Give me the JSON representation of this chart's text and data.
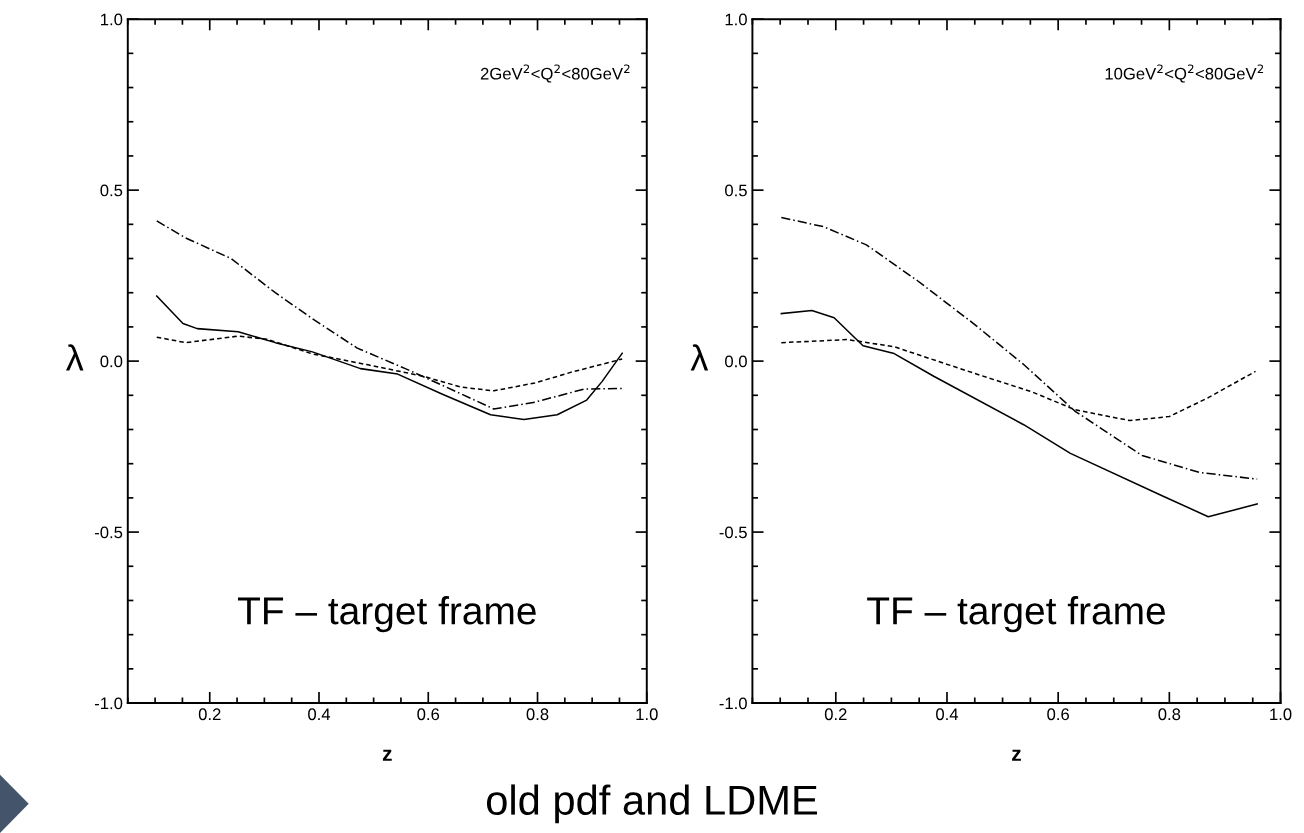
{
  "chart_data": [
    {
      "type": "line",
      "xlabel": "z",
      "ylabel": "λ",
      "xlim": [
        0.05,
        1.0
      ],
      "ylim": [
        -1.0,
        1.0
      ],
      "xticks": [
        0.2,
        0.4,
        0.6,
        0.8,
        {
          "value": 1.0,
          "label": "1.0"
        }
      ],
      "yticks": [
        {
          "value": -1.0,
          "label": "-1.0"
        },
        {
          "value": -0.5,
          "label": "-0.5"
        },
        {
          "value": 0.0,
          "label": "0.0"
        },
        0.5,
        {
          "value": 1.0,
          "label": "1.0"
        }
      ],
      "grid": false,
      "legend": false,
      "marker": "none",
      "annotations": [
        "2GeV$^{2}$<Q$^{2}$<80GeV$^{2}$",
        "TF – target frame",
        "old pdf and LDME"
      ],
      "series": [
        {
          "color": "#000000",
          "line_style": "solid",
          "x": [
            0.103,
            0.151,
            0.177,
            0.252,
            0.32,
            0.388,
            0.476,
            0.544,
            0.626,
            0.714,
            0.775,
            0.836,
            0.89,
            0.918,
            0.955
          ],
          "values": [
            0.19,
            0.11,
            0.095,
            0.086,
            0.054,
            0.027,
            -0.022,
            -0.038,
            -0.097,
            -0.157,
            -0.171,
            -0.157,
            -0.114,
            -0.06,
            0.023
          ]
        },
        {
          "color": "#000000",
          "line_style": "dashed",
          "x": [
            0.103,
            0.156,
            0.252,
            0.305,
            0.388,
            0.49,
            0.59,
            0.66,
            0.72,
            0.795,
            0.863,
            0.955
          ],
          "values": [
            0.07,
            0.054,
            0.073,
            0.064,
            0.021,
            -0.011,
            -0.044,
            -0.076,
            -0.087,
            -0.064,
            -0.032,
            0.006
          ]
        },
        {
          "color": "#000000",
          "line_style": "dashdot",
          "x": [
            0.103,
            0.156,
            0.239,
            0.32,
            0.388,
            0.47,
            0.558,
            0.633,
            0.72,
            0.795,
            0.885,
            0.955
          ],
          "values": [
            0.41,
            0.36,
            0.3,
            0.2,
            0.124,
            0.038,
            -0.022,
            -0.076,
            -0.14,
            -0.12,
            -0.082,
            -0.08
          ]
        }
      ]
    },
    {
      "type": "line",
      "xlabel": "z",
      "ylabel": "λ",
      "xlim": [
        0.05,
        1.0
      ],
      "ylim": [
        -1.0,
        1.0
      ],
      "xticks": [
        0.2,
        0.4,
        0.6,
        0.8,
        {
          "value": 1.0,
          "label": "1.0"
        }
      ],
      "yticks": [
        {
          "value": -1.0,
          "label": "-1.0"
        },
        {
          "value": -0.5,
          "label": "-0.5"
        },
        {
          "value": 0.0,
          "label": "0.0"
        },
        0.5,
        {
          "value": 1.0,
          "label": "1.0"
        }
      ],
      "grid": false,
      "legend": false,
      "marker": "none",
      "annotations": [
        "10GeV$^{2}$<Q$^{2}$<80GeV$^{2}$",
        "TF – target frame"
      ],
      "series": [
        {
          "color": "#000000",
          "line_style": "solid",
          "x": [
            0.102,
            0.157,
            0.197,
            0.249,
            0.305,
            0.377,
            0.538,
            0.622,
            0.786,
            0.87,
            0.958
          ],
          "values": [
            0.139,
            0.148,
            0.127,
            0.045,
            0.022,
            -0.045,
            -0.186,
            -0.27,
            -0.393,
            -0.455,
            -0.418
          ]
        },
        {
          "color": "#000000",
          "line_style": "dashed",
          "x": [
            0.102,
            0.157,
            0.221,
            0.305,
            0.446,
            0.553,
            0.63,
            0.729,
            0.8,
            0.87,
            0.955
          ],
          "values": [
            0.054,
            0.058,
            0.063,
            0.042,
            -0.034,
            -0.09,
            -0.142,
            -0.174,
            -0.162,
            -0.107,
            -0.03
          ]
        },
        {
          "color": "#000000",
          "line_style": "dashdot",
          "x": [
            0.102,
            0.178,
            0.255,
            0.347,
            0.446,
            0.538,
            0.63,
            0.751,
            0.855,
            0.958
          ],
          "values": [
            0.42,
            0.393,
            0.34,
            0.235,
            0.112,
            -0.01,
            -0.146,
            -0.276,
            -0.326,
            -0.345
          ]
        }
      ]
    }
  ]
}
